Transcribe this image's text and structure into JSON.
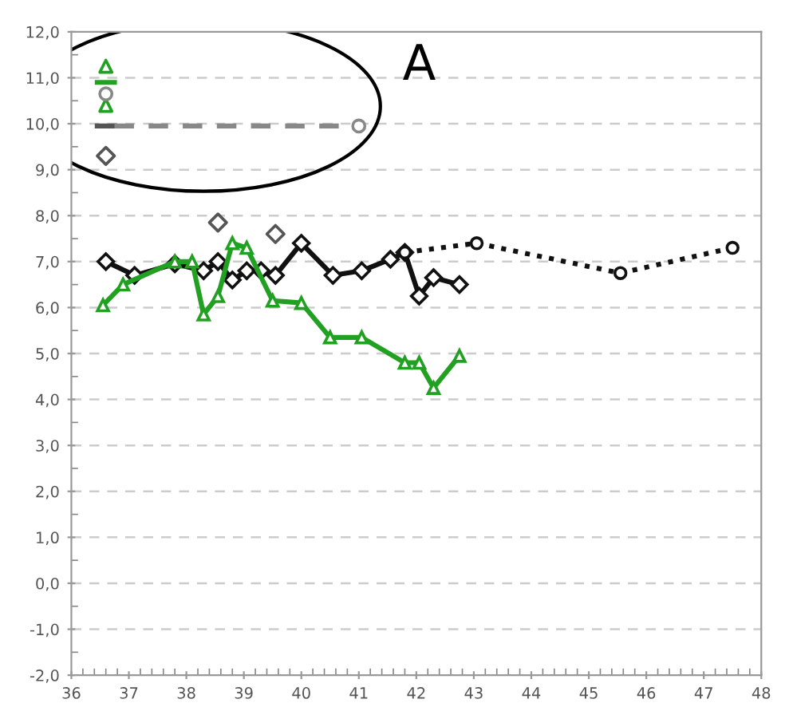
{
  "chart_data": {
    "type": "line",
    "annotations": [
      "A"
    ],
    "xlim": [
      36,
      48
    ],
    "xticks": [
      36,
      37,
      38,
      39,
      40,
      41,
      42,
      43,
      44,
      45,
      46,
      47,
      48
    ],
    "ylim": [
      -2,
      12
    ],
    "yticks": [
      {
        "value": -2,
        "label": "-2,0"
      },
      {
        "value": -1,
        "label": "-1,0"
      },
      {
        "value": 0,
        "label": "0,0"
      },
      {
        "value": 1,
        "label": "1,0"
      },
      {
        "value": 2,
        "label": "2,0"
      },
      {
        "value": 3,
        "label": "3,0"
      },
      {
        "value": 4,
        "label": "4,0"
      },
      {
        "value": 5,
        "label": "5,0"
      },
      {
        "value": 6,
        "label": "6,0"
      },
      {
        "value": 7,
        "label": "7,0"
      },
      {
        "value": 8,
        "label": "8,0"
      },
      {
        "value": 9,
        "label": "9,0"
      },
      {
        "value": 10,
        "label": "10,0"
      },
      {
        "value": 11,
        "label": "11,0"
      },
      {
        "value": 12,
        "label": "12,0"
      }
    ],
    "grid": "y",
    "series": [
      {
        "color": "#111111",
        "marker": "diamond",
        "line_style": "solid",
        "x": [
          36.6,
          37.1,
          37.8,
          38.3,
          38.55,
          38.8,
          39.05,
          39.3,
          39.55,
          40.0,
          40.55,
          41.05,
          41.55,
          41.8,
          42.05,
          42.3,
          42.75
        ],
        "values": [
          7.0,
          6.7,
          6.95,
          6.8,
          7.0,
          6.6,
          6.8,
          6.8,
          6.7,
          7.4,
          6.7,
          6.8,
          7.05,
          7.2,
          6.25,
          6.65,
          6.5
        ]
      },
      {
        "color": "#111111",
        "marker": "circle",
        "line_style": "dotted",
        "x": [
          41.8,
          43.05,
          45.55,
          47.5
        ],
        "values": [
          7.2,
          7.4,
          6.75,
          7.3
        ]
      },
      {
        "color": "#22a022",
        "marker": "triangle",
        "line_style": "solid",
        "x": [
          36.55,
          36.9,
          37.8,
          38.1,
          38.3,
          38.55,
          38.8,
          39.05,
          39.5,
          40.0,
          40.5,
          41.05,
          41.8,
          42.05,
          42.3,
          42.75
        ],
        "values": [
          6.05,
          6.5,
          7.0,
          7.0,
          5.85,
          6.25,
          7.4,
          7.3,
          6.15,
          6.1,
          5.35,
          5.35,
          4.8,
          4.8,
          4.25,
          4.95
        ]
      },
      {
        "type": "scatter",
        "color": "#555555",
        "marker": "diamond",
        "x": [
          38.55,
          39.55,
          36.6
        ],
        "values": [
          7.85,
          7.6,
          9.3
        ]
      },
      {
        "type": "scatter",
        "color": "#22a022",
        "marker": "triangle",
        "x": [
          36.6,
          36.6
        ],
        "values": [
          11.25,
          10.4
        ]
      },
      {
        "type": "scatter",
        "color": "#888888",
        "marker": "circle",
        "x": [
          36.6,
          41.0
        ],
        "values": [
          10.65,
          9.95
        ]
      },
      {
        "color": "#22a022",
        "marker": "none",
        "line_style": "solid",
        "x": [
          36.45,
          36.75
        ],
        "values": [
          10.9,
          10.9
        ]
      },
      {
        "color": "#555555",
        "marker": "none",
        "line_style": "solid",
        "x": [
          36.45,
          36.75
        ],
        "values": [
          9.95,
          9.95
        ]
      },
      {
        "color": "#888888",
        "marker": "none",
        "line_style": "dashed",
        "x": [
          36.75,
          41.0
        ],
        "values": [
          9.95,
          9.95
        ]
      }
    ]
  }
}
